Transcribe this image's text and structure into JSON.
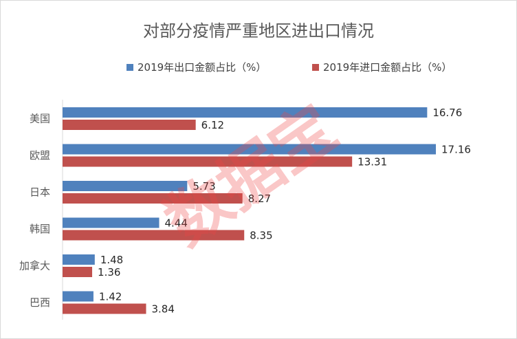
{
  "chart_data": {
    "type": "bar",
    "orientation": "horizontal",
    "title": "对部分疫情严重地区进出口情况",
    "categories": [
      "美国",
      "欧盟",
      "日本",
      "韩国",
      "加拿大",
      "巴西"
    ],
    "series": [
      {
        "name": "2019年出口金额占比（%）",
        "color": "#4f81bd",
        "values": [
          16.76,
          17.16,
          5.73,
          4.44,
          1.48,
          1.42
        ],
        "labels": [
          "16.76",
          "17.16",
          "5.73",
          "4.44",
          "1.48",
          "1.42"
        ]
      },
      {
        "name": "2019年进口金额占比（%）",
        "color": "#c0504d",
        "values": [
          6.12,
          13.31,
          8.27,
          8.35,
          1.36,
          3.84
        ],
        "labels": [
          "6.12",
          "13.31",
          "8.27",
          "8.35",
          "1.36",
          "3.84"
        ]
      }
    ],
    "xlim": [
      0,
      17.16
    ],
    "grid": false,
    "legend_position": "top",
    "data_labels": true
  },
  "watermark": {
    "text": "数据宝",
    "color": "#f04646"
  }
}
